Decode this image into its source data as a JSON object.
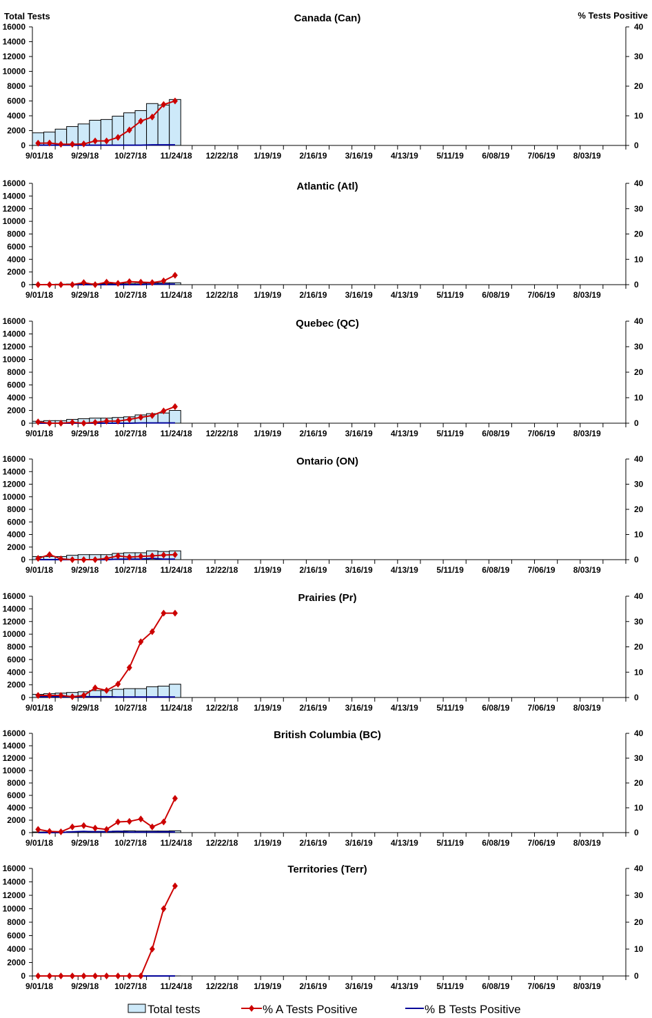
{
  "chart_data": [
    {
      "type": "bar+line",
      "title": "Canada (Can)",
      "ylabel_left": "Total Tests",
      "ylabel_right": "% Tests Positive",
      "total_tests": [
        1700,
        1800,
        2200,
        2550,
        2900,
        3400,
        3500,
        3950,
        4400,
        4700,
        5650,
        5450,
        6200
      ],
      "pct_a": [
        0.75,
        0.8,
        0.4,
        0.4,
        0.5,
        1.5,
        1.5,
        2.7,
        5.2,
        8.2,
        9.6,
        13.8,
        15.0
      ],
      "pct_b": [
        0.1,
        0.1,
        0.1,
        0.1,
        0.1,
        0.1,
        0.1,
        0.1,
        0.1,
        0.1,
        0.2,
        0.2,
        0.2
      ]
    },
    {
      "type": "bar+line",
      "title": "Atlantic (Atl)",
      "total_tests": [
        50,
        60,
        80,
        100,
        120,
        150,
        150,
        180,
        200,
        220,
        250,
        280,
        300
      ],
      "pct_a": [
        0,
        0,
        0,
        0,
        0.8,
        0,
        1.0,
        0.5,
        1.2,
        1.0,
        0.8,
        1.5,
        3.7
      ],
      "pct_b": [
        0,
        0,
        0,
        0,
        0,
        0,
        0,
        0,
        0,
        0,
        0.2,
        0.2,
        0.2
      ]
    },
    {
      "type": "bar+line",
      "title": "Quebec (QC)",
      "total_tests": [
        300,
        400,
        400,
        600,
        700,
        800,
        800,
        900,
        1000,
        1300,
        1500,
        1600,
        2000
      ],
      "pct_a": [
        0.5,
        0,
        0,
        0.3,
        0,
        0.3,
        0.8,
        0.8,
        1.5,
        2.3,
        3.0,
        4.8,
        6.5
      ],
      "pct_b": [
        0,
        0,
        0,
        0,
        0,
        0,
        0,
        0,
        0,
        0.1,
        0.1,
        0.1,
        0.1
      ]
    },
    {
      "type": "bar+line",
      "title": "Ontario (ON)",
      "total_tests": [
        500,
        500,
        500,
        700,
        800,
        800,
        800,
        1000,
        1100,
        1100,
        1400,
        1300,
        1400
      ],
      "pct_a": [
        0.5,
        2.0,
        0.3,
        0,
        0,
        0,
        0.5,
        1.5,
        1.0,
        1.3,
        1.5,
        1.8,
        2.0
      ],
      "pct_b": [
        0,
        0,
        0,
        0,
        0,
        0,
        0,
        0.2,
        0.2,
        0.2,
        0.5,
        0.2,
        0.2
      ]
    },
    {
      "type": "bar+line",
      "title": "Prairies (Pr)",
      "total_tests": [
        500,
        600,
        700,
        800,
        900,
        1100,
        1100,
        1300,
        1400,
        1400,
        1700,
        1800,
        2100
      ],
      "pct_a": [
        0.8,
        0.8,
        0.8,
        0.3,
        0.8,
        3.8,
        2.8,
        5.3,
        11.8,
        22.0,
        26.0,
        33.3,
        33.3
      ],
      "pct_b": [
        0.3,
        0.3,
        0.3,
        0.3,
        0.3,
        0.3,
        0.3,
        0.2,
        0.2,
        0.2,
        0.2,
        0.2,
        0.2
      ]
    },
    {
      "type": "bar+line",
      "title": "British Columbia (BC)",
      "total_tests": [
        100,
        100,
        100,
        150,
        200,
        200,
        200,
        250,
        300,
        250,
        250,
        250,
        300
      ],
      "pct_a": [
        1.3,
        0.5,
        0.3,
        2.3,
        2.8,
        1.8,
        1.3,
        4.3,
        4.5,
        5.5,
        2.3,
        4.3,
        13.8
      ],
      "pct_b": [
        0,
        0,
        0,
        0.3,
        0.5,
        0.3,
        0.3,
        0.5,
        0.2,
        0.2,
        0.2,
        0.3,
        0.2
      ]
    },
    {
      "type": "bar+line",
      "title": "Territories (Terr)",
      "total_tests": [
        5,
        5,
        5,
        5,
        5,
        5,
        5,
        5,
        5,
        5,
        5,
        5,
        5
      ],
      "pct_a": [
        0,
        0,
        0,
        0,
        0,
        0,
        0,
        0,
        0,
        0,
        10.0,
        25.0,
        33.5
      ],
      "pct_b": [
        0,
        0,
        0,
        0,
        0,
        0,
        0,
        0,
        0,
        0,
        0,
        0,
        0
      ]
    }
  ],
  "axes": {
    "y_left_ticks": [
      "0",
      "2000",
      "4000",
      "6000",
      "8000",
      "10000",
      "12000",
      "14000",
      "16000"
    ],
    "y_left_range": [
      0,
      16000
    ],
    "y_right_ticks": [
      "0",
      "10",
      "20",
      "30",
      "40"
    ],
    "y_right_range": [
      0,
      40
    ],
    "x_tick_labels": [
      "9/01/18",
      "9/29/18",
      "10/27/18",
      "11/24/18",
      "12/22/18",
      "1/19/19",
      "2/16/19",
      "3/16/19",
      "4/13/19",
      "5/11/19",
      "6/08/19",
      "7/06/19",
      "8/03/19"
    ],
    "weeks": 52,
    "grid": false
  },
  "legend": {
    "placement": "bottom",
    "items": [
      "Total tests",
      "% A Tests Positive",
      "% B Tests Positive"
    ]
  },
  "colors": {
    "bar_fill": "#cde9f9",
    "pct_a": "#cc0000",
    "pct_b": "#000099"
  }
}
